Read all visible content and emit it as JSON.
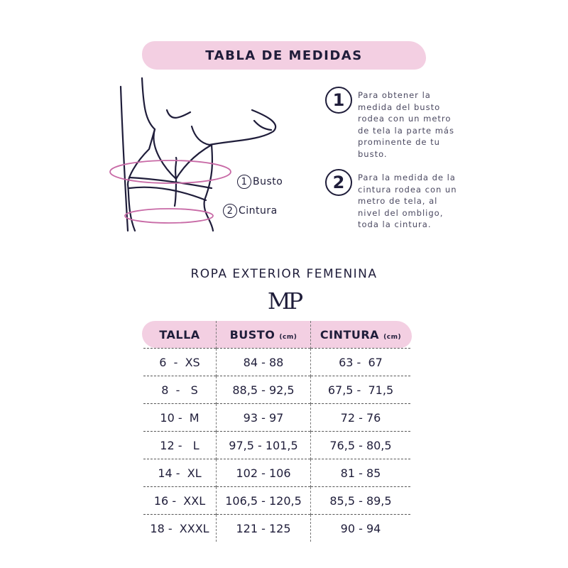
{
  "title": "TABLA DE MEDIDAS",
  "illustration": {
    "labels": [
      {
        "num": "1",
        "text": "Busto"
      },
      {
        "num": "2",
        "text": "Cintura"
      }
    ],
    "ring_color": "#c86aa6"
  },
  "steps": [
    {
      "num": "1",
      "text": "Para obtener la medida del busto rodea con un metro de tela la parte más prominente de tu busto."
    },
    {
      "num": "2",
      "text": "Para la medida de la cintura rodea con un metro de tela, al nivel del ombligo, toda la cintura."
    }
  ],
  "subtitle": "ROPA EXTERIOR FEMENINA",
  "logo": "MP",
  "table": {
    "headers": [
      {
        "label": "TALLA",
        "unit": ""
      },
      {
        "label": "BUSTO",
        "unit": "(cm)"
      },
      {
        "label": "CINTURA",
        "unit": "(cm)"
      }
    ],
    "rows": [
      [
        "6  -  XS",
        "84 - 88",
        "63 -  67"
      ],
      [
        "8  -   S",
        "88,5 - 92,5",
        "67,5 -  71,5"
      ],
      [
        "10 -  M",
        "93 - 97",
        "72 - 76"
      ],
      [
        "12 -   L",
        "97,5 - 101,5",
        "76,5 - 80,5"
      ],
      [
        "14 -  XL",
        "102 - 106",
        "81 - 85"
      ],
      [
        "16 -  XXL",
        "106,5 - 120,5",
        "85,5 - 89,5"
      ],
      [
        "18 -  XXXL",
        "121 - 125",
        "90 - 94"
      ]
    ]
  },
  "colors": {
    "accent": "#f3cfe2",
    "text": "#1f1d3a"
  }
}
